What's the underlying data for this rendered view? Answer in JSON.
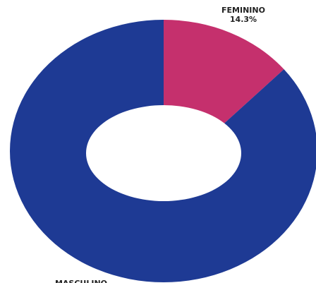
{
  "chart_data": {
    "type": "donut",
    "categories": [
      "FEMININO",
      "MASCULINO"
    ],
    "values": [
      14.3,
      85.7
    ],
    "value_labels": [
      "14.3%",
      null
    ],
    "colors": [
      "#c5306d",
      "#1e3a94"
    ]
  }
}
